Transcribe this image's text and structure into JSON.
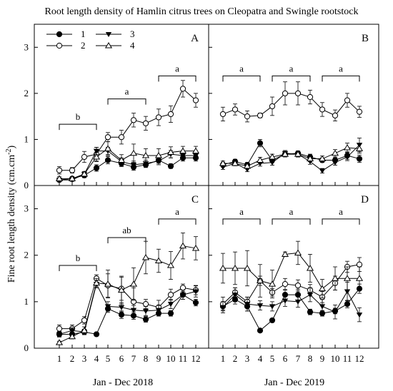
{
  "figure_title": "Root length density of Hamlin citrus trees on Cleopatra and Swingle rootstock",
  "ylabel": "Fine root length density (cm.cm",
  "ylabel_sup": "-2",
  "ylabel_close": ")",
  "xlabel_left": "Jan - Dec 2018",
  "xlabel_right": "Jan - Dec 2019",
  "legend": [
    {
      "label": "1",
      "marker": "filled-circle"
    },
    {
      "label": "2",
      "marker": "open-circle"
    },
    {
      "label": "3",
      "marker": "filled-triangle-down"
    },
    {
      "label": "4",
      "marker": "open-triangle-up"
    }
  ],
  "chart_data": [
    {
      "panel": "A",
      "type": "line",
      "x": [
        1,
        2,
        3,
        4,
        5,
        6,
        7,
        8,
        9,
        10,
        11,
        12
      ],
      "ylim": [
        0,
        3.5
      ],
      "yticks": [
        "0",
        "1",
        "2",
        "3"
      ],
      "series": [
        {
          "name": "1",
          "values": [
            0.12,
            0.15,
            0.22,
            0.38,
            0.55,
            0.48,
            0.4,
            0.45,
            0.55,
            0.42,
            0.6,
            0.6
          ],
          "err": [
            0.04,
            0.04,
            0.05,
            0.07,
            0.08,
            0.07,
            0.07,
            0.06,
            0.07,
            0.05,
            0.07,
            0.07
          ]
        },
        {
          "name": "2",
          "values": [
            0.33,
            0.33,
            0.62,
            0.68,
            1.05,
            1.05,
            1.42,
            1.35,
            1.48,
            1.55,
            2.1,
            1.85
          ],
          "err": [
            0.08,
            0.06,
            0.12,
            0.15,
            0.1,
            0.15,
            0.15,
            0.15,
            0.18,
            0.18,
            0.18,
            0.15
          ]
        },
        {
          "name": "3",
          "values": [
            0.12,
            0.12,
            0.25,
            0.75,
            0.75,
            0.52,
            0.45,
            0.48,
            0.53,
            0.68,
            0.65,
            0.65
          ],
          "err": [
            0.03,
            0.03,
            0.05,
            0.08,
            0.08,
            0.08,
            0.08,
            0.07,
            0.08,
            0.08,
            0.08,
            0.08
          ]
        },
        {
          "name": "4",
          "values": [
            0.15,
            0.15,
            0.25,
            0.62,
            0.8,
            0.55,
            0.7,
            0.65,
            0.65,
            0.72,
            0.75,
            0.75
          ],
          "err": [
            0.04,
            0.04,
            0.05,
            0.1,
            0.15,
            0.12,
            0.2,
            0.15,
            0.15,
            0.12,
            0.1,
            0.1
          ]
        }
      ],
      "brackets": [
        {
          "from": 1,
          "to": 4,
          "level": 1.33,
          "label": "b"
        },
        {
          "from": 5,
          "to": 8,
          "level": 1.88,
          "label": "a"
        },
        {
          "from": 9,
          "to": 12,
          "level": 2.38,
          "label": "a"
        }
      ]
    },
    {
      "panel": "B",
      "type": "line",
      "x": [
        1,
        2,
        3,
        4,
        5,
        6,
        7,
        8,
        9,
        10,
        11,
        12
      ],
      "ylim": [
        0,
        3.5
      ],
      "yticks": [],
      "series": [
        {
          "name": "1",
          "values": [
            0.45,
            0.52,
            0.45,
            0.92,
            0.55,
            0.68,
            0.7,
            0.62,
            0.55,
            0.55,
            0.65,
            0.58
          ],
          "err": [
            0.05,
            0.05,
            0.05,
            0.08,
            0.05,
            0.05,
            0.05,
            0.06,
            0.05,
            0.05,
            0.08,
            0.08
          ]
        },
        {
          "name": "2",
          "values": [
            1.55,
            1.65,
            1.5,
            1.52,
            1.72,
            2.0,
            2.0,
            1.92,
            1.65,
            1.52,
            1.85,
            1.6
          ],
          "err": [
            0.15,
            0.12,
            0.12,
            0.05,
            0.2,
            0.25,
            0.25,
            0.15,
            0.15,
            0.12,
            0.15,
            0.12
          ]
        },
        {
          "name": "3",
          "values": [
            0.4,
            0.48,
            0.35,
            0.48,
            0.5,
            0.7,
            0.68,
            0.52,
            0.32,
            0.5,
            0.62,
            0.88
          ],
          "err": [
            0.05,
            0.05,
            0.05,
            0.06,
            0.06,
            0.06,
            0.06,
            0.06,
            0.05,
            0.06,
            0.08,
            0.15
          ]
        },
        {
          "name": "4",
          "values": [
            0.48,
            0.48,
            0.42,
            0.55,
            0.62,
            0.68,
            0.68,
            0.58,
            0.58,
            0.7,
            0.82,
            0.8
          ],
          "err": [
            0.05,
            0.05,
            0.05,
            0.06,
            0.06,
            0.06,
            0.06,
            0.06,
            0.06,
            0.08,
            0.1,
            0.1
          ]
        }
      ],
      "brackets": [
        {
          "from": 1,
          "to": 4,
          "level": 2.38,
          "label": "a"
        },
        {
          "from": 5,
          "to": 8,
          "level": 2.38,
          "label": "a"
        },
        {
          "from": 9,
          "to": 12,
          "level": 2.38,
          "label": "a"
        }
      ]
    },
    {
      "panel": "C",
      "type": "line",
      "x": [
        1,
        2,
        3,
        4,
        5,
        6,
        7,
        8,
        9,
        10,
        11,
        12
      ],
      "ylim": [
        0,
        3.5
      ],
      "yticks": [
        "0",
        "1",
        "2",
        "3"
      ],
      "series": [
        {
          "name": "1",
          "values": [
            0.3,
            0.3,
            0.35,
            0.3,
            0.85,
            0.72,
            0.7,
            0.62,
            0.75,
            0.75,
            1.15,
            0.98
          ],
          "err": [
            0.05,
            0.05,
            0.05,
            0.03,
            0.08,
            0.08,
            0.08,
            0.06,
            0.06,
            0.06,
            0.1,
            0.07
          ]
        },
        {
          "name": "2",
          "values": [
            0.42,
            0.42,
            0.6,
            1.5,
            1.35,
            1.28,
            1.0,
            0.95,
            0.88,
            1.15,
            1.3,
            1.25
          ],
          "err": [
            0.08,
            0.08,
            0.08,
            0.08,
            0.25,
            0.25,
            0.3,
            0.1,
            0.15,
            0.12,
            0.08,
            0.1
          ]
        },
        {
          "name": "3",
          "values": [
            0.3,
            0.38,
            0.35,
            1.38,
            0.9,
            0.88,
            0.82,
            0.8,
            0.82,
            0.95,
            1.15,
            1.22
          ],
          "err": [
            0.06,
            0.06,
            0.06,
            0.08,
            0.1,
            0.1,
            0.1,
            0.1,
            0.1,
            0.1,
            0.1,
            0.12
          ]
        },
        {
          "name": "4",
          "values": [
            0.12,
            0.25,
            0.38,
            1.4,
            1.38,
            1.25,
            1.38,
            1.95,
            1.88,
            1.78,
            2.2,
            2.15
          ],
          "err": [
            0.03,
            0.05,
            0.08,
            0.1,
            0.3,
            0.3,
            0.35,
            0.35,
            0.25,
            0.3,
            0.28,
            0.25
          ]
        }
      ],
      "brackets": [
        {
          "from": 1,
          "to": 4,
          "level": 1.78,
          "label": "b"
        },
        {
          "from": 5,
          "to": 8,
          "level": 2.38,
          "label": "ab"
        },
        {
          "from": 9,
          "to": 12,
          "level": 2.78,
          "label": "a"
        }
      ]
    },
    {
      "panel": "D",
      "type": "line",
      "x": [
        1,
        2,
        3,
        4,
        5,
        6,
        7,
        8,
        9,
        10,
        11,
        12
      ],
      "ylim": [
        0,
        3.5
      ],
      "yticks": [],
      "series": [
        {
          "name": "1",
          "values": [
            0.9,
            1.05,
            0.9,
            0.38,
            0.6,
            1.15,
            1.15,
            0.78,
            0.75,
            0.8,
            0.95,
            1.28
          ],
          "err": [
            0.08,
            0.1,
            0.1,
            0.03,
            0.04,
            0.1,
            0.12,
            0.06,
            0.06,
            0.06,
            0.08,
            0.1
          ]
        },
        {
          "name": "2",
          "values": [
            0.95,
            1.2,
            1.0,
            1.45,
            1.2,
            1.38,
            1.35,
            1.25,
            1.1,
            1.4,
            1.75,
            1.8
          ],
          "err": [
            0.15,
            0.1,
            0.1,
            0.1,
            0.08,
            0.12,
            0.12,
            0.12,
            0.12,
            0.15,
            0.12,
            0.15
          ]
        },
        {
          "name": "3",
          "values": [
            0.88,
            1.15,
            0.95,
            0.92,
            0.9,
            1.02,
            1.0,
            1.15,
            0.9,
            0.78,
            1.22,
            0.72
          ],
          "err": [
            0.12,
            0.15,
            0.15,
            0.1,
            0.1,
            0.12,
            0.12,
            0.15,
            0.15,
            0.15,
            0.2,
            0.15
          ]
        },
        {
          "name": "4",
          "values": [
            1.72,
            1.72,
            1.72,
            1.45,
            1.38,
            2.02,
            2.05,
            1.72,
            1.28,
            1.5,
            1.5,
            1.5
          ],
          "err": [
            0.32,
            0.35,
            0.38,
            0.35,
            0.3,
            0.05,
            0.25,
            0.3,
            0.2,
            0.25,
            0.25,
            0.25
          ]
        }
      ],
      "brackets": [
        {
          "from": 1,
          "to": 4,
          "level": 2.78,
          "label": "a"
        },
        {
          "from": 5,
          "to": 8,
          "level": 2.78,
          "label": "a"
        },
        {
          "from": 9,
          "to": 12,
          "level": 2.78,
          "label": "a"
        }
      ]
    }
  ]
}
